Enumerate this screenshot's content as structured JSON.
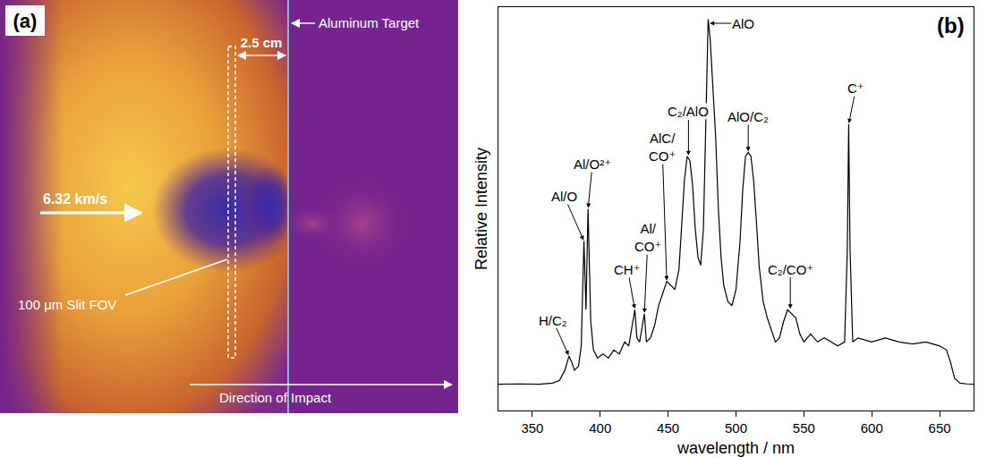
{
  "image_panel": {
    "label": "(a)",
    "target_label": "Aluminum Target",
    "distance_label": "2.5 cm",
    "velocity_label": "6.32 km/s",
    "slit_label": "100 μm Slit FOV",
    "direction_label": "Direction of Impact"
  },
  "chart_data": {
    "type": "line",
    "panel_label": "(b)",
    "x_label": "wavelength / nm",
    "y_label": "Relative Intensity",
    "color": "#000000",
    "x": [
      325,
      340,
      355,
      365,
      370,
      374,
      377,
      379,
      381,
      384,
      386,
      388,
      389.5,
      391,
      393,
      395,
      398,
      402,
      406,
      410,
      414,
      418,
      421,
      424,
      425.5,
      427,
      429,
      431,
      432.5,
      434,
      437,
      440,
      443,
      446,
      449,
      452,
      455,
      458,
      460,
      462,
      464,
      466,
      468,
      470,
      472,
      474,
      476,
      478,
      479.5,
      481,
      483,
      485,
      487,
      489,
      491,
      494,
      497,
      500,
      503,
      505,
      507,
      509,
      511,
      513,
      515,
      517,
      520,
      523,
      526,
      529,
      532,
      535,
      538,
      541,
      544,
      547,
      550,
      555,
      560,
      565,
      570,
      575,
      580,
      582,
      583,
      584,
      586,
      590,
      600,
      610,
      620,
      630,
      640,
      650,
      655,
      658,
      661,
      665,
      670,
      675
    ],
    "values": [
      0.065,
      0.066,
      0.065,
      0.068,
      0.075,
      0.1,
      0.135,
      0.12,
      0.1,
      0.11,
      0.16,
      0.42,
      0.25,
      0.5,
      0.22,
      0.15,
      0.13,
      0.14,
      0.13,
      0.15,
      0.14,
      0.17,
      0.16,
      0.22,
      0.25,
      0.18,
      0.17,
      0.21,
      0.24,
      0.17,
      0.18,
      0.21,
      0.26,
      0.29,
      0.32,
      0.31,
      0.3,
      0.35,
      0.47,
      0.57,
      0.63,
      0.62,
      0.56,
      0.45,
      0.38,
      0.36,
      0.45,
      0.78,
      0.97,
      0.92,
      0.8,
      0.68,
      0.5,
      0.38,
      0.31,
      0.27,
      0.26,
      0.3,
      0.42,
      0.55,
      0.63,
      0.64,
      0.63,
      0.57,
      0.47,
      0.36,
      0.27,
      0.23,
      0.2,
      0.17,
      0.18,
      0.22,
      0.25,
      0.24,
      0.23,
      0.19,
      0.17,
      0.19,
      0.17,
      0.18,
      0.17,
      0.16,
      0.17,
      0.4,
      0.71,
      0.4,
      0.17,
      0.18,
      0.17,
      0.18,
      0.17,
      0.165,
      0.17,
      0.16,
      0.15,
      0.12,
      0.08,
      0.068,
      0.066,
      0.065
    ],
    "xlim": [
      325,
      675
    ],
    "xticks": [
      350,
      400,
      450,
      500,
      550,
      600,
      650
    ],
    "ylim": [
      0,
      1.0
    ],
    "tick_labels": "x",
    "grid": false,
    "annotations": [
      {
        "text": "H/C₂",
        "x": 377,
        "y": 0.135
      },
      {
        "text": "Al/O",
        "x": 388,
        "y": 0.42
      },
      {
        "text": "Al/O²⁺",
        "x": 391,
        "y": 0.5
      },
      {
        "text": "CH⁺",
        "x": 425.5,
        "y": 0.25
      },
      {
        "text": "Al/\nCO⁺",
        "x": 432.5,
        "y": 0.24
      },
      {
        "text": "AlC/\nCO⁺",
        "x": 449,
        "y": 0.32
      },
      {
        "text": "C₂/AlO",
        "x": 465,
        "y": 0.63
      },
      {
        "text": "AlO",
        "x": 480,
        "y": 0.96
      },
      {
        "text": "AlO/C₂",
        "x": 509,
        "y": 0.64
      },
      {
        "text": "C₂/CO⁺",
        "x": 540,
        "y": 0.25
      },
      {
        "text": "C⁺",
        "x": 583,
        "y": 0.71
      }
    ]
  }
}
